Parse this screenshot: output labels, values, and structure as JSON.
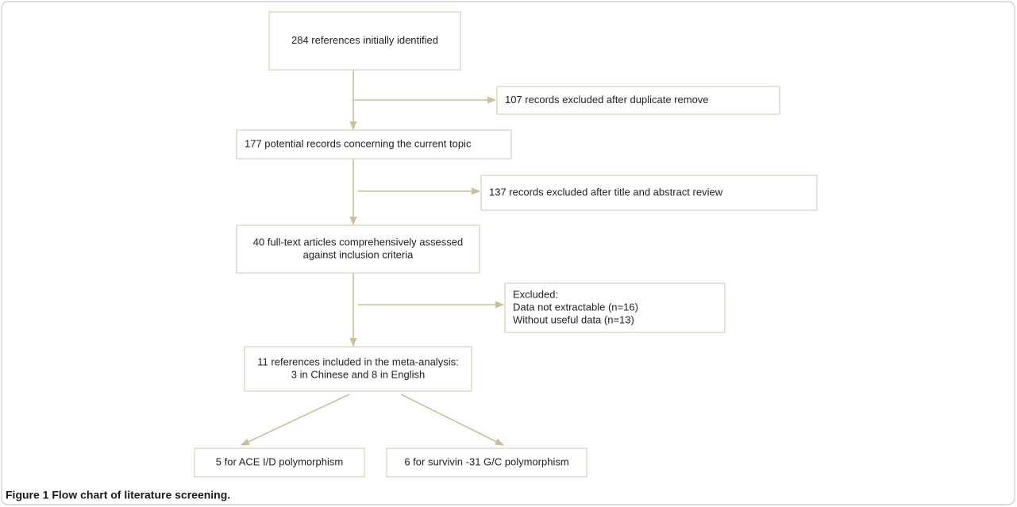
{
  "nodes": [
    {
      "lines": [
        "284 references initially identified"
      ]
    },
    {
      "lines": [
        "107 records excluded after duplicate remove"
      ]
    },
    {
      "lines": [
        "177 potential records concerning the current topic"
      ]
    },
    {
      "lines": [
        "137 records excluded after title and  abstract review"
      ]
    },
    {
      "lines": [
        "40 full-text articles comprehensively assessed",
        "against inclusion criteria"
      ]
    },
    {
      "lines": [
        "Excluded:",
        "Data not extractable (n=16)",
        "Without useful data (n=13)"
      ]
    },
    {
      "lines": [
        "11 references included in the meta-analysis:",
        "3 in Chinese and 8 in English"
      ]
    },
    {
      "lines": [
        "5 for ACE I/D polymorphism"
      ]
    },
    {
      "lines": [
        "6 for survivin -31 G/C polymorphism"
      ]
    }
  ],
  "caption": "Figure 1 Flow chart of literature screening."
}
